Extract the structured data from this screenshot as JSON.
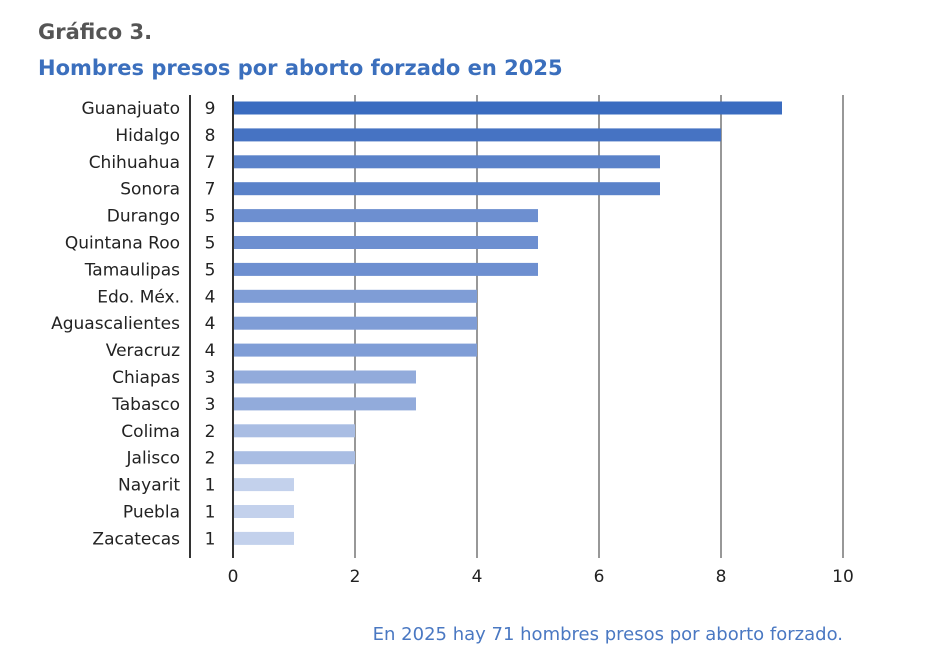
{
  "figure_label": "Gráfico 3.",
  "footnote": "En 2025 hay 71 hombres presos por aborto forzado.",
  "chart_data": {
    "type": "bar",
    "orientation": "horizontal",
    "title": "Hombres presos por aborto forzado en 2025",
    "categories": [
      "Guanajuato",
      "Hidalgo",
      "Chihuahua",
      "Sonora",
      "Durango",
      "Quintana Roo",
      "Tamaulipas",
      "Edo. Méx.",
      "Aguascalientes",
      "Veracruz",
      "Chiapas",
      "Tabasco",
      "Colima",
      "Jalisco",
      "Nayarit",
      "Puebla",
      "Zacatecas"
    ],
    "values": [
      9,
      8,
      7,
      7,
      5,
      5,
      5,
      4,
      4,
      4,
      3,
      3,
      2,
      2,
      1,
      1,
      1
    ],
    "xlim": [
      0,
      10
    ],
    "xticks": [
      0,
      2,
      4,
      6,
      8,
      10
    ],
    "grid": true,
    "data_labels": "left-of-axis",
    "colors": {
      "9": "#3a6cc0",
      "8": "#4673c3",
      "7": "#5a82c9",
      "5": "#6d8fd0",
      "4": "#7f9dd6",
      "3": "#92abdb",
      "2": "#a9bde3",
      "1": "#c3d1ec"
    }
  }
}
